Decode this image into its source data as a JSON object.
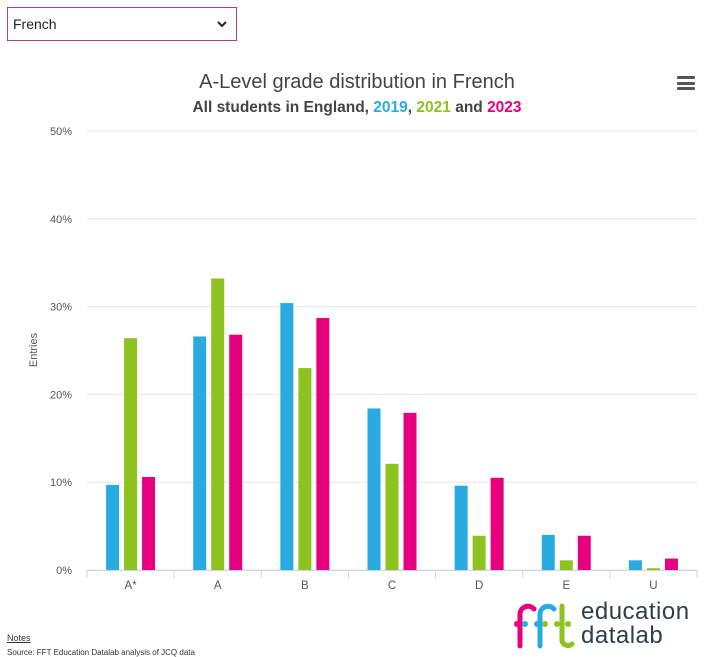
{
  "selector": {
    "value": "French"
  },
  "chart_data": {
    "type": "bar",
    "title": "A-Level grade distribution in French",
    "subtitle_prefix": "All students in England, ",
    "subtitle_sep1": ", ",
    "subtitle_sep2": " and ",
    "ylabel": "Entries",
    "categories": [
      "A*",
      "A",
      "B",
      "C",
      "D",
      "E",
      "U"
    ],
    "ylim": [
      0,
      50
    ],
    "yticks": [
      0,
      10,
      20,
      30,
      40,
      50
    ],
    "ytick_labels": [
      "0%",
      "10%",
      "20%",
      "30%",
      "40%",
      "50%"
    ],
    "grid": true,
    "series": [
      {
        "name": "2019",
        "color": "#29abe2",
        "values": [
          9.7,
          26.6,
          30.4,
          18.4,
          9.6,
          4.0,
          1.1
        ]
      },
      {
        "name": "2021",
        "color": "#8dc21f",
        "values": [
          26.4,
          33.2,
          23.0,
          12.1,
          3.9,
          1.1,
          0.2
        ]
      },
      {
        "name": "2023",
        "color": "#e6007e",
        "values": [
          10.6,
          26.8,
          28.7,
          17.9,
          10.5,
          3.9,
          1.3
        ]
      }
    ]
  },
  "notes_label": "Notes",
  "source_text": "Source: FFT Education Datalab analysis of JCQ data",
  "logo": {
    "line1": "education",
    "line2": "datalab"
  }
}
